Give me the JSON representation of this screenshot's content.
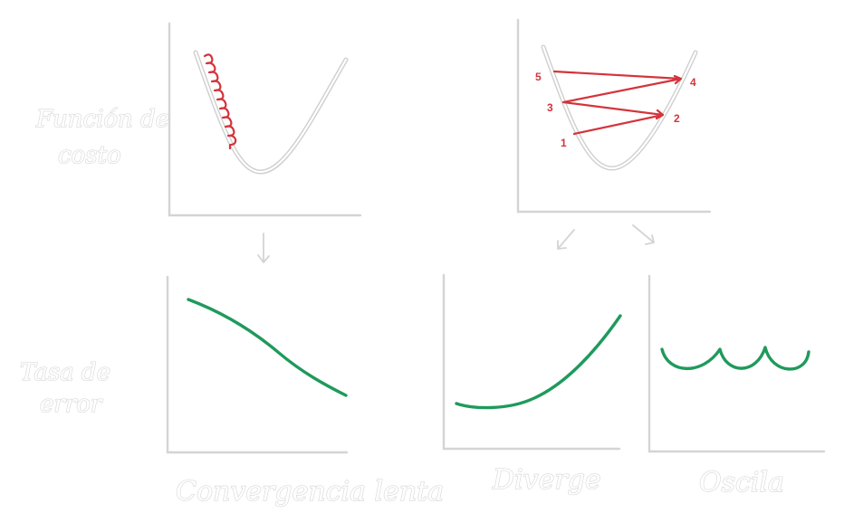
{
  "labels": {
    "cost_function": [
      "Función de",
      "costo"
    ],
    "error_rate": [
      "Tasa de",
      "error"
    ],
    "slow_convergence": "Convergencia lenta",
    "diverges": "Diverge",
    "oscillates": "Oscila"
  },
  "steps": [
    "1",
    "2",
    "3",
    "4",
    "5"
  ],
  "colors": {
    "steps_red": "#d4343c",
    "curve_green": "#1f9a5c",
    "sketch_gray": "#d4d4d4"
  }
}
